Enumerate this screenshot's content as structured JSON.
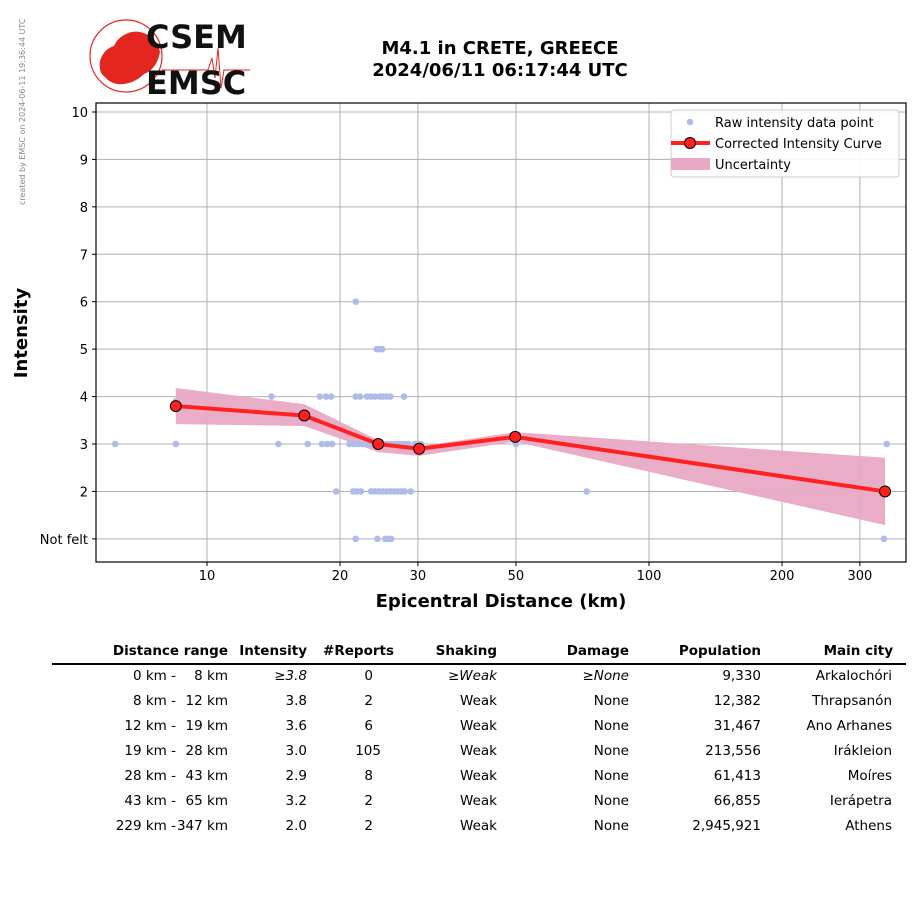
{
  "credit": "created by EMSC on 2024-06-11 19:36:44 UTC",
  "logo": {
    "top": "CSEM",
    "bottom": "EMSC"
  },
  "title": {
    "line1": "M4.1 in CRETE, GREECE",
    "line2": "2024/06/11 06:17:44 UTC"
  },
  "chart_data": {
    "type": "scatter",
    "title": "M4.1 in CRETE, GREECE 2024/06/11 06:17:44 UTC",
    "xlabel": "Epicentral Distance (km)",
    "ylabel": "Intensity",
    "xscale": "log",
    "xlim": [
      5.6,
      381
    ],
    "ylim": [
      0.5,
      10.2
    ],
    "xticks": [
      10,
      20,
      30,
      50,
      100,
      200,
      300
    ],
    "yticks": [
      {
        "v": 1,
        "label": "Not felt"
      },
      {
        "v": 2,
        "label": "2"
      },
      {
        "v": 3,
        "label": "3"
      },
      {
        "v": 4,
        "label": "4"
      },
      {
        "v": 5,
        "label": "5"
      },
      {
        "v": 6,
        "label": "6"
      },
      {
        "v": 7,
        "label": "7"
      },
      {
        "v": 8,
        "label": "8"
      },
      {
        "v": 9,
        "label": "9"
      },
      {
        "v": 10,
        "label": "10"
      }
    ],
    "grid": true,
    "legend_position": "top-right",
    "legend": [
      "Raw intensity data point",
      "Corrected Intensity Curve",
      "Uncertainty"
    ],
    "colors": {
      "raw": "#b0bce8",
      "curve": "#ff2020",
      "band": "#e8a9c4"
    },
    "raw_points": [
      [
        6.2,
        3
      ],
      [
        8.5,
        3
      ],
      [
        8.5,
        3.9
      ],
      [
        14.0,
        4
      ],
      [
        14.5,
        3
      ],
      [
        16.9,
        3
      ],
      [
        18.2,
        3
      ],
      [
        18.7,
        3
      ],
      [
        19.2,
        3
      ],
      [
        18.0,
        4
      ],
      [
        18.6,
        4
      ],
      [
        19.1,
        4
      ],
      [
        19.6,
        2
      ],
      [
        21.0,
        3
      ],
      [
        21.5,
        3
      ],
      [
        22.0,
        3
      ],
      [
        22.5,
        3
      ],
      [
        23.0,
        3
      ],
      [
        23.5,
        3
      ],
      [
        24.0,
        3
      ],
      [
        24.5,
        3
      ],
      [
        25.0,
        3
      ],
      [
        25.5,
        3
      ],
      [
        26.0,
        3
      ],
      [
        26.5,
        3
      ],
      [
        27.0,
        3
      ],
      [
        27.5,
        3
      ],
      [
        28.0,
        3
      ],
      [
        28.5,
        3
      ],
      [
        29.5,
        3
      ],
      [
        30.0,
        3
      ],
      [
        30.5,
        3
      ],
      [
        50,
        3
      ],
      [
        345,
        3
      ],
      [
        21.7,
        4
      ],
      [
        22.2,
        4
      ],
      [
        23.0,
        4
      ],
      [
        23.5,
        4
      ],
      [
        24.0,
        4
      ],
      [
        24.6,
        4
      ],
      [
        25.0,
        4
      ],
      [
        25.5,
        4
      ],
      [
        26.0,
        4
      ],
      [
        27.9,
        4
      ],
      [
        21.4,
        2
      ],
      [
        21.8,
        2
      ],
      [
        22.3,
        2
      ],
      [
        23.5,
        2
      ],
      [
        24.0,
        2
      ],
      [
        24.5,
        2
      ],
      [
        25.0,
        2
      ],
      [
        25.5,
        2
      ],
      [
        26.0,
        2
      ],
      [
        26.5,
        2
      ],
      [
        27.0,
        2
      ],
      [
        27.5,
        2
      ],
      [
        28.0,
        2
      ],
      [
        28.9,
        2
      ],
      [
        72.3,
        2
      ],
      [
        21.7,
        1
      ],
      [
        24.3,
        1
      ],
      [
        25.3,
        1
      ],
      [
        25.7,
        1
      ],
      [
        26.1,
        1
      ],
      [
        340,
        1
      ],
      [
        21.7,
        6
      ],
      [
        24.2,
        5
      ],
      [
        24.5,
        5
      ],
      [
        24.9,
        5
      ]
    ],
    "curve": {
      "x": [
        8.5,
        16.6,
        24.4,
        30.2,
        49.8,
        342
      ],
      "y": [
        3.8,
        3.6,
        3.0,
        2.9,
        3.15,
        2.0
      ]
    },
    "uncertainty": {
      "x": [
        8.5,
        16.6,
        24.4,
        30.2,
        49.8,
        342
      ],
      "lower": [
        3.42,
        3.38,
        2.83,
        2.75,
        3.05,
        1.29
      ],
      "upper": [
        4.18,
        3.84,
        3.08,
        2.95,
        3.25,
        2.71
      ]
    }
  },
  "table": {
    "headers": [
      "Distance range",
      "Intensity",
      "#Reports",
      "Shaking",
      "Damage",
      "Population",
      "Main city"
    ],
    "rows": [
      {
        "from": "0 km -",
        "to": "8 km",
        "intensity": "≥3.8",
        "reports": "0",
        "shaking": "≥Weak",
        "damage": "≥None",
        "population": "9,330",
        "city": "Arkalochóri",
        "italic": true
      },
      {
        "from": "8 km -",
        "to": "12 km",
        "intensity": "3.8",
        "reports": "2",
        "shaking": "Weak",
        "damage": "None",
        "population": "12,382",
        "city": "Thrapsanón"
      },
      {
        "from": "12 km -",
        "to": "19 km",
        "intensity": "3.6",
        "reports": "6",
        "shaking": "Weak",
        "damage": "None",
        "population": "31,467",
        "city": "Ano Arhanes"
      },
      {
        "from": "19 km -",
        "to": "28 km",
        "intensity": "3.0",
        "reports": "105",
        "shaking": "Weak",
        "damage": "None",
        "population": "213,556",
        "city": "Irákleion"
      },
      {
        "from": "28 km -",
        "to": "43 km",
        "intensity": "2.9",
        "reports": "8",
        "shaking": "Weak",
        "damage": "None",
        "population": "61,413",
        "city": "Moíres"
      },
      {
        "from": "43 km -",
        "to": "65 km",
        "intensity": "3.2",
        "reports": "2",
        "shaking": "Weak",
        "damage": "None",
        "population": "66,855",
        "city": "Ierápetra"
      },
      {
        "from": "229 km -",
        "to": "347 km",
        "intensity": "2.0",
        "reports": "2",
        "shaking": "Weak",
        "damage": "None",
        "population": "2,945,921",
        "city": "Athens"
      }
    ]
  }
}
